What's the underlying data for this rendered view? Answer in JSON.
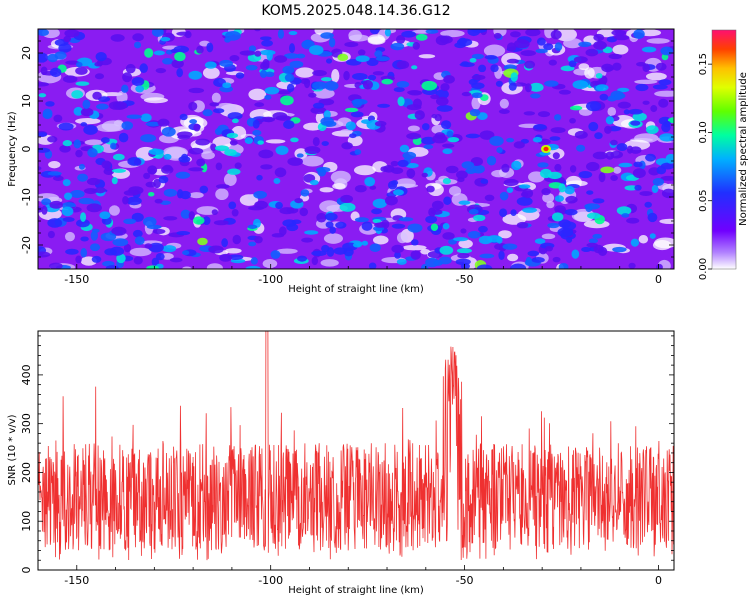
{
  "title": "KOM5.2025.048.14.36.G12",
  "chart_data": [
    {
      "type": "heatmap",
      "title": "KOM5.2025.048.14.36.G12",
      "xlabel": "Height of straight line (km)",
      "ylabel": "Frequency (Hz)",
      "xlim": [
        -160,
        4
      ],
      "ylim": [
        -25,
        25
      ],
      "xticks": [
        -150,
        -100,
        -50,
        0
      ],
      "yticks": [
        -20,
        -10,
        0,
        10,
        20
      ],
      "colorbar": {
        "label": "Normalized spectral amplitude",
        "range": [
          0.0,
          0.175
        ],
        "ticks": [
          "0.00",
          "0.05",
          "0.10",
          "0.15"
        ],
        "tick_values": [
          0.0,
          0.05,
          0.1,
          0.15
        ],
        "colors": [
          "#ffffff",
          "#8000ff",
          "#2020ff",
          "#00c8ff",
          "#00ff80",
          "#c0ff00",
          "#ffd000",
          "#ff4000",
          "#ff2080"
        ]
      },
      "peak": {
        "x": -29,
        "y": 0,
        "value": 0.175
      }
    },
    {
      "type": "line",
      "xlabel": "Height of straight line (km)",
      "ylabel": "SNR (10 * v/v)",
      "xlim": [
        -160,
        4
      ],
      "ylim": [
        0,
        490
      ],
      "xticks": [
        -150,
        -100,
        -50,
        0
      ],
      "yticks": [
        0,
        100,
        200,
        300,
        400
      ],
      "line_color": "#ef3030",
      "series_summary": {
        "baseline_mean": 150,
        "typical_range": [
          40,
          300
        ],
        "max": 490,
        "max_at_x": -101,
        "secondary_peak": 460,
        "secondary_peak_at_x": -53
      }
    }
  ]
}
